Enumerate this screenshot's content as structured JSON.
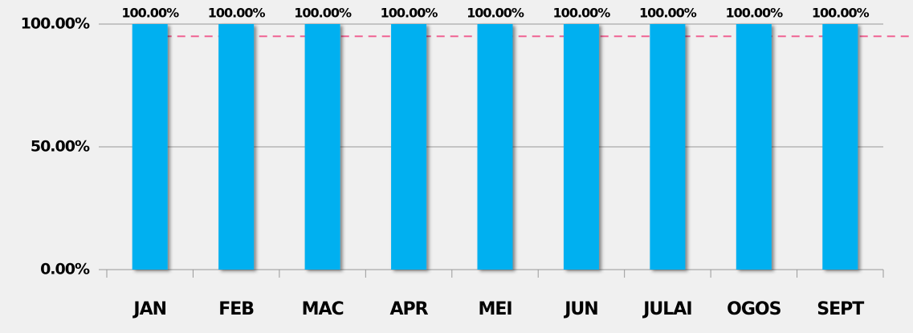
{
  "chart_data": {
    "type": "bar",
    "categories": [
      "JAN",
      "FEB",
      "MAC",
      "APR",
      "MEI",
      "JUN",
      "JULAI",
      "OGOS",
      "SEPT"
    ],
    "values": [
      100,
      100,
      100,
      100,
      100,
      100,
      100,
      100,
      100
    ],
    "value_labels": [
      "100.00%",
      "100.00%",
      "100.00%",
      "100.00%",
      "100.00%",
      "100.00%",
      "100.00%",
      "100.00%",
      "100.00%"
    ],
    "color": "#00b0f0",
    "ylim": [
      0,
      100
    ],
    "yticks": [
      {
        "value": 0,
        "label": "0.00%"
      },
      {
        "value": 50,
        "label": "50.00%"
      },
      {
        "value": 100,
        "label": "100.00%"
      }
    ],
    "grid": true,
    "reference_line": {
      "value": 95,
      "color": "#f06292"
    }
  }
}
